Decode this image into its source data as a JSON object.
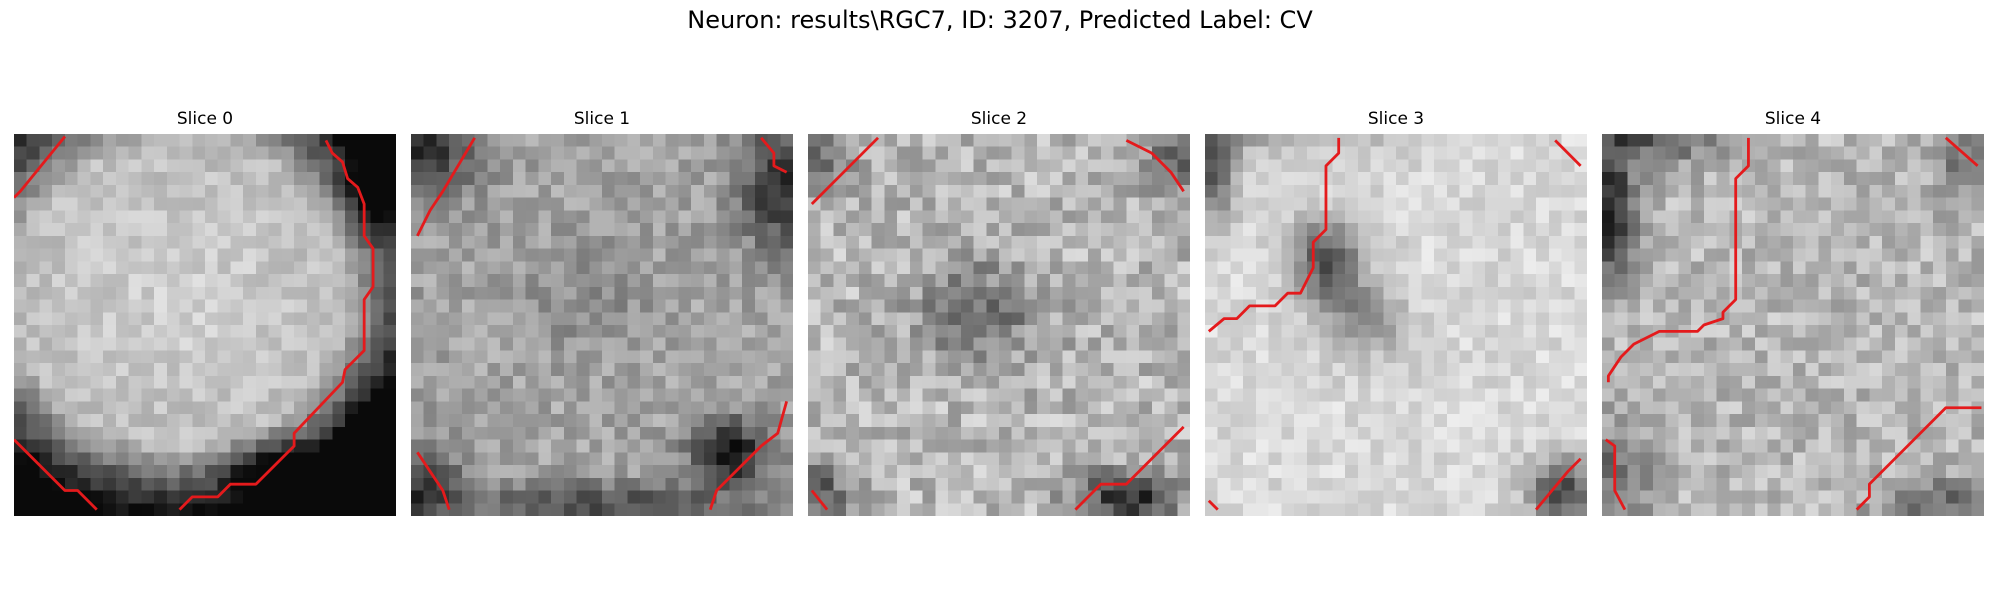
{
  "figure": {
    "title": "Neuron: results\\RGC7, ID: 3207, Predicted Label: CV"
  },
  "colors": {
    "contour": "#e41a1c",
    "background": "#ffffff"
  },
  "image_grid": 30,
  "panels": [
    {
      "title": "Slice 0",
      "appearance": "bright disc with dark lower rim",
      "contours": [
        [
          [
            0.0,
            5.0
          ],
          [
            0.5,
            4.5
          ],
          [
            4.0,
            0.2
          ]
        ],
        [
          [
            24.5,
            0.5
          ],
          [
            25.0,
            1.5
          ],
          [
            25.8,
            2.2
          ],
          [
            26.2,
            3.5
          ],
          [
            27.0,
            4.2
          ],
          [
            27.5,
            5.5
          ],
          [
            27.5,
            8.0
          ],
          [
            28.2,
            9.0
          ],
          [
            28.2,
            12.0
          ],
          [
            27.5,
            13.0
          ],
          [
            27.5,
            17.0
          ],
          [
            26.0,
            18.5
          ],
          [
            25.8,
            19.5
          ],
          [
            22.0,
            23.5
          ],
          [
            22.0,
            24.5
          ],
          [
            19.0,
            27.5
          ],
          [
            17.0,
            27.5
          ],
          [
            16.0,
            28.5
          ],
          [
            14.0,
            28.5
          ],
          [
            13.0,
            29.5
          ]
        ],
        [
          [
            0.0,
            24.0
          ],
          [
            4.0,
            28.0
          ],
          [
            5.0,
            28.0
          ],
          [
            6.5,
            29.5
          ]
        ]
      ]
    },
    {
      "title": "Slice 1",
      "appearance": "textured grey disc, dark corners",
      "contours": [
        [
          [
            0.5,
            8.0
          ],
          [
            1.5,
            6.0
          ],
          [
            2.5,
            4.5
          ],
          [
            5.0,
            0.3
          ]
        ],
        [
          [
            27.5,
            0.3
          ],
          [
            28.5,
            1.5
          ],
          [
            28.5,
            2.5
          ],
          [
            29.5,
            3.0
          ]
        ],
        [
          [
            0.5,
            25.0
          ],
          [
            1.5,
            26.5
          ],
          [
            2.5,
            28.0
          ],
          [
            3.0,
            29.5
          ]
        ],
        [
          [
            23.5,
            29.5
          ],
          [
            24.0,
            28.0
          ],
          [
            27.5,
            24.5
          ],
          [
            28.8,
            23.5
          ],
          [
            29.5,
            21.0
          ]
        ]
      ]
    },
    {
      "title": "Slice 2",
      "appearance": "grainy disc with darker centre",
      "contours": [
        [
          [
            0.3,
            5.5
          ],
          [
            5.5,
            0.3
          ]
        ],
        [
          [
            25.0,
            0.5
          ],
          [
            27.0,
            1.5
          ],
          [
            28.5,
            3.0
          ],
          [
            29.5,
            4.5
          ]
        ],
        [
          [
            0.3,
            28.0
          ],
          [
            1.5,
            29.5
          ]
        ],
        [
          [
            21.0,
            29.5
          ],
          [
            23.0,
            27.5
          ],
          [
            25.0,
            27.5
          ],
          [
            29.5,
            23.0
          ]
        ]
      ]
    },
    {
      "title": "Slice 3",
      "appearance": "bright field with dark central blob",
      "contours": [
        [
          [
            10.5,
            0.3
          ],
          [
            10.5,
            1.5
          ],
          [
            9.5,
            2.5
          ],
          [
            9.5,
            7.5
          ],
          [
            8.5,
            8.5
          ],
          [
            8.5,
            10.5
          ],
          [
            7.5,
            12.5
          ],
          [
            6.5,
            12.5
          ],
          [
            5.5,
            13.5
          ],
          [
            3.5,
            13.5
          ],
          [
            2.5,
            14.5
          ],
          [
            1.5,
            14.5
          ],
          [
            0.3,
            15.5
          ]
        ],
        [
          [
            27.5,
            0.5
          ],
          [
            29.5,
            2.5
          ]
        ],
        [
          [
            0.3,
            28.8
          ],
          [
            1.0,
            29.5
          ]
        ],
        [
          [
            26.0,
            29.5
          ],
          [
            28.5,
            26.5
          ],
          [
            29.5,
            25.5
          ]
        ]
      ]
    },
    {
      "title": "Slice 4",
      "appearance": "grey disc with dark left edge",
      "contours": [
        [
          [
            11.5,
            0.3
          ],
          [
            11.5,
            2.5
          ],
          [
            10.5,
            3.5
          ],
          [
            10.5,
            13.0
          ],
          [
            9.5,
            14.0
          ],
          [
            9.5,
            14.5
          ],
          [
            8.0,
            15.0
          ],
          [
            7.5,
            15.5
          ],
          [
            4.5,
            15.5
          ],
          [
            3.5,
            16.0
          ],
          [
            2.5,
            16.5
          ],
          [
            1.5,
            17.5
          ],
          [
            0.5,
            19.0
          ],
          [
            0.5,
            19.5
          ]
        ],
        [
          [
            27.0,
            0.3
          ],
          [
            29.5,
            2.5
          ]
        ],
        [
          [
            0.3,
            24.0
          ],
          [
            1.0,
            24.5
          ],
          [
            1.0,
            28.0
          ],
          [
            1.8,
            29.5
          ]
        ],
        [
          [
            20.0,
            29.5
          ],
          [
            21.0,
            28.5
          ],
          [
            21.0,
            27.5
          ],
          [
            27.0,
            21.5
          ],
          [
            29.8,
            21.5
          ]
        ]
      ]
    }
  ]
}
